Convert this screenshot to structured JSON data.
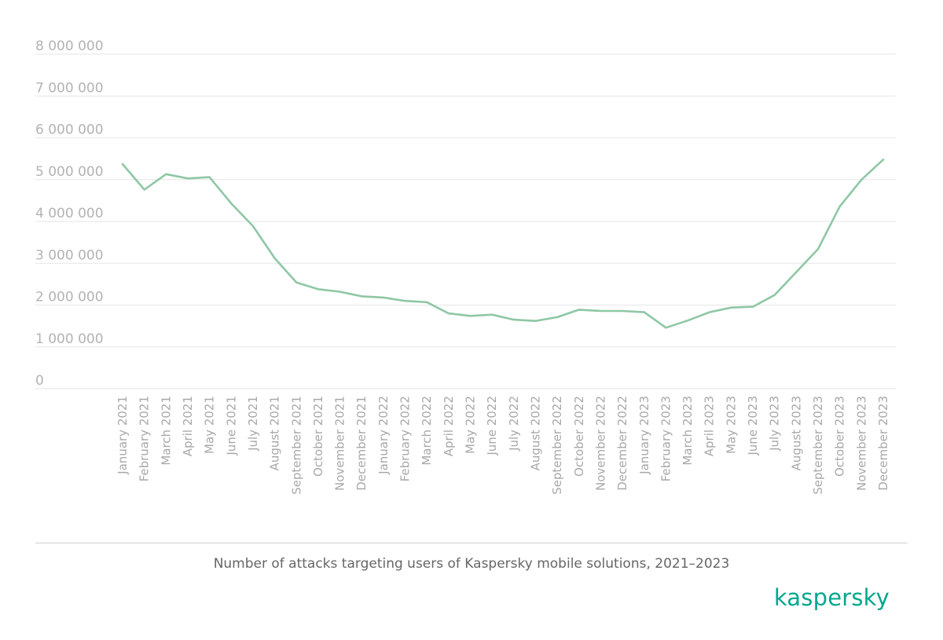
{
  "chart_data": {
    "type": "line",
    "title": "Number of attacks targeting users of Kaspersky mobile solutions, 2021–2023",
    "xlabel": "",
    "ylabel": "",
    "ylim": [
      0,
      8000000
    ],
    "yticks": [
      {
        "value": 0,
        "label": "0"
      },
      {
        "value": 1000000,
        "label": "1 000 000"
      },
      {
        "value": 2000000,
        "label": "2 000 000"
      },
      {
        "value": 3000000,
        "label": "3 000 000"
      },
      {
        "value": 4000000,
        "label": "4 000 000"
      },
      {
        "value": 5000000,
        "label": "5 000 000"
      },
      {
        "value": 6000000,
        "label": "6 000 000"
      },
      {
        "value": 7000000,
        "label": "7 000 000"
      },
      {
        "value": 8000000,
        "label": "8 000 000"
      }
    ],
    "grid": true,
    "legend": "none",
    "line_color": "#8fc7a5",
    "categories": [
      "January 2021",
      "February 2021",
      "March 2021",
      "April 2021",
      "May 2021",
      "June 2021",
      "July 2021",
      "August 2021",
      "September 2021",
      "October 2021",
      "November 2021",
      "December 2021",
      "January 2022",
      "February 2022",
      "March 2022",
      "April 2022",
      "May 2022",
      "June 2022",
      "July 2022",
      "August 2022",
      "September 2022",
      "October 2022",
      "November 2022",
      "December 2022",
      "January 2023",
      "February 2023",
      "March 2023",
      "April 2023",
      "May 2023",
      "June 2023",
      "July 2023",
      "August 2023",
      "September 2023",
      "October 2023",
      "November 2023",
      "December 2023"
    ],
    "series": [
      {
        "values": [
          5370000,
          4760000,
          5130000,
          5030000,
          5060000,
          4430000,
          3890000,
          3120000,
          2540000,
          2380000,
          2320000,
          2210000,
          2180000,
          2100000,
          2070000,
          1800000,
          1740000,
          1770000,
          1650000,
          1620000,
          1710000,
          1890000,
          1860000,
          1860000,
          1830000,
          1460000,
          1630000,
          1830000,
          1940000,
          1960000,
          2240000,
          2790000,
          3340000,
          4360000,
          5000000,
          5480000
        ]
      }
    ]
  },
  "brand": {
    "name": "kaspersky",
    "color": "#00a88e"
  }
}
